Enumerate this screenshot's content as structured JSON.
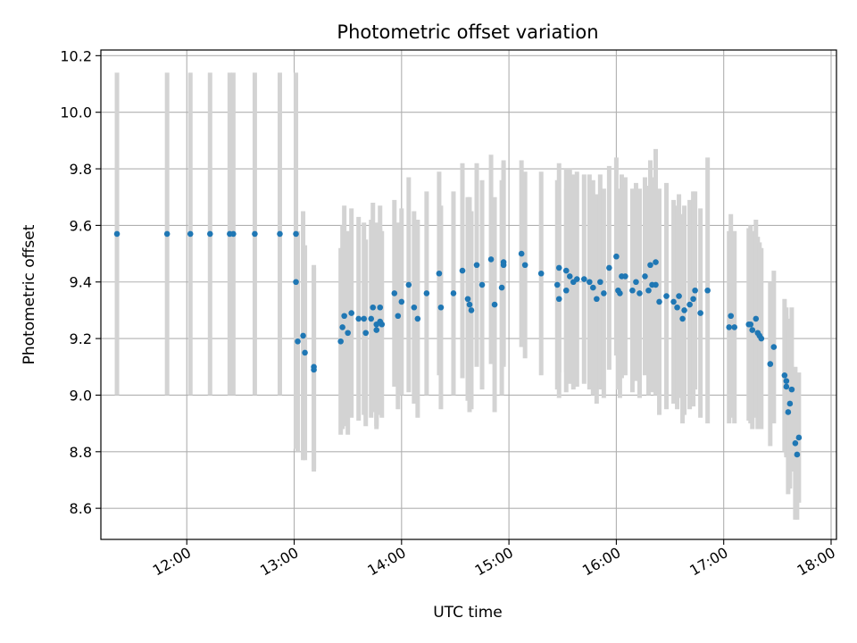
{
  "chart_data": {
    "type": "scatter",
    "title": "Photometric offset variation",
    "xlabel": "UTC time",
    "ylabel": "Photometric offset",
    "x_unit": "UTC time (HH:MM)",
    "xlim": [
      "11:12",
      "18:03"
    ],
    "ylim": [
      8.49,
      10.22
    ],
    "x_ticks": [
      "12:00",
      "13:00",
      "14:00",
      "15:00",
      "16:00",
      "17:00",
      "18:00"
    ],
    "y_ticks": [
      "8.6",
      "8.8",
      "9.0",
      "9.2",
      "9.4",
      "9.6",
      "9.8",
      "10.0",
      "10.2"
    ],
    "grid": true,
    "colors": {
      "points": "#1f77b4",
      "error_bars": "#d3d3d3",
      "grid": "#b0b0b0"
    },
    "series": [
      {
        "x": [
          "11:21",
          "11:49",
          "12:02",
          "12:13",
          "12:24",
          "12:26",
          "12:38",
          "12:52",
          "13:01",
          "13:01",
          "13:02",
          "13:05",
          "13:06",
          "13:11",
          "13:11",
          "13:26",
          "13:27",
          "13:28",
          "13:30",
          "13:32",
          "13:36",
          "13:39",
          "13:40",
          "13:43",
          "13:44",
          "13:46",
          "13:46",
          "13:48",
          "13:48",
          "13:49",
          "13:56",
          "13:58",
          "14:00",
          "14:04",
          "14:07",
          "14:09",
          "14:14",
          "14:21",
          "14:22",
          "14:29",
          "14:34",
          "14:37",
          "14:38",
          "14:39",
          "14:42",
          "14:45",
          "14:50",
          "14:52",
          "14:56",
          "14:57",
          "14:57",
          "15:07",
          "15:09",
          "15:18",
          "15:27",
          "15:28",
          "15:28",
          "15:32",
          "15:32",
          "15:34",
          "15:36",
          "15:38",
          "15:42",
          "15:45",
          "15:47",
          "15:49",
          "15:51",
          "15:53",
          "15:56",
          "16:00",
          "16:01",
          "16:02",
          "16:03",
          "16:05",
          "16:09",
          "16:11",
          "16:13",
          "16:16",
          "16:18",
          "16:19",
          "16:20",
          "16:22",
          "16:22",
          "16:24",
          "16:28",
          "16:32",
          "16:34",
          "16:35",
          "16:37",
          "16:38",
          "16:41",
          "16:43",
          "16:44",
          "16:47",
          "16:51",
          "17:03",
          "17:04",
          "17:06",
          "17:14",
          "17:15",
          "17:16",
          "17:18",
          "17:19",
          "17:20",
          "17:21",
          "17:26",
          "17:28",
          "17:34",
          "17:35",
          "17:35",
          "17:36",
          "17:37",
          "17:38",
          "17:40",
          "17:41",
          "17:42"
        ],
        "y": [
          9.57,
          9.57,
          9.57,
          9.57,
          9.57,
          9.57,
          9.57,
          9.57,
          9.57,
          9.4,
          9.19,
          9.21,
          9.15,
          9.09,
          9.1,
          9.19,
          9.24,
          9.28,
          9.22,
          9.29,
          9.27,
          9.27,
          9.22,
          9.27,
          9.31,
          9.25,
          9.23,
          9.31,
          9.26,
          9.25,
          9.36,
          9.28,
          9.33,
          9.39,
          9.31,
          9.27,
          9.36,
          9.43,
          9.31,
          9.36,
          9.44,
          9.34,
          9.32,
          9.3,
          9.46,
          9.39,
          9.48,
          9.32,
          9.38,
          9.47,
          9.46,
          9.5,
          9.46,
          9.43,
          9.39,
          9.45,
          9.34,
          9.37,
          9.44,
          9.42,
          9.4,
          9.41,
          9.41,
          9.4,
          9.38,
          9.34,
          9.4,
          9.36,
          9.45,
          9.49,
          9.37,
          9.36,
          9.42,
          9.42,
          9.37,
          9.4,
          9.36,
          9.42,
          9.37,
          9.46,
          9.39,
          9.47,
          9.39,
          9.33,
          9.35,
          9.33,
          9.31,
          9.35,
          9.27,
          9.3,
          9.32,
          9.34,
          9.37,
          9.29,
          9.37,
          9.24,
          9.28,
          9.24,
          9.25,
          9.25,
          9.23,
          9.27,
          9.22,
          9.21,
          9.2,
          9.11,
          9.17,
          9.07,
          9.05,
          9.03,
          8.94,
          8.97,
          9.02,
          8.83,
          8.79,
          8.85
        ],
        "err": [
          0.57,
          0.57,
          0.57,
          0.57,
          0.57,
          0.57,
          0.57,
          0.57,
          0.57,
          0.59,
          0.39,
          0.44,
          0.38,
          0.36,
          0.36,
          0.33,
          0.36,
          0.39,
          0.36,
          0.37,
          0.36,
          0.34,
          0.33,
          0.35,
          0.37,
          0.36,
          0.35,
          0.36,
          0.33,
          0.33,
          0.33,
          0.33,
          0.33,
          0.38,
          0.34,
          0.35,
          0.36,
          0.36,
          0.36,
          0.36,
          0.38,
          0.36,
          0.38,
          0.35,
          0.36,
          0.37,
          0.37,
          0.38,
          0.38,
          0.36,
          0.36,
          0.33,
          0.33,
          0.36,
          0.37,
          0.37,
          0.35,
          0.36,
          0.36,
          0.38,
          0.38,
          0.38,
          0.37,
          0.38,
          0.38,
          0.37,
          0.38,
          0.37,
          0.36,
          0.35,
          0.35,
          0.37,
          0.36,
          0.35,
          0.36,
          0.35,
          0.37,
          0.35,
          0.37,
          0.37,
          0.38,
          0.4,
          0.39,
          0.4,
          0.4,
          0.36,
          0.36,
          0.36,
          0.37,
          0.37,
          0.37,
          0.38,
          0.35,
          0.37,
          0.47,
          0.34,
          0.36,
          0.34,
          0.34,
          0.35,
          0.35,
          0.35,
          0.34,
          0.33,
          0.32,
          0.29,
          0.27,
          0.27,
          0.26,
          0.25,
          0.29,
          0.3,
          0.29,
          0.27,
          0.23,
          0.23
        ]
      }
    ]
  }
}
